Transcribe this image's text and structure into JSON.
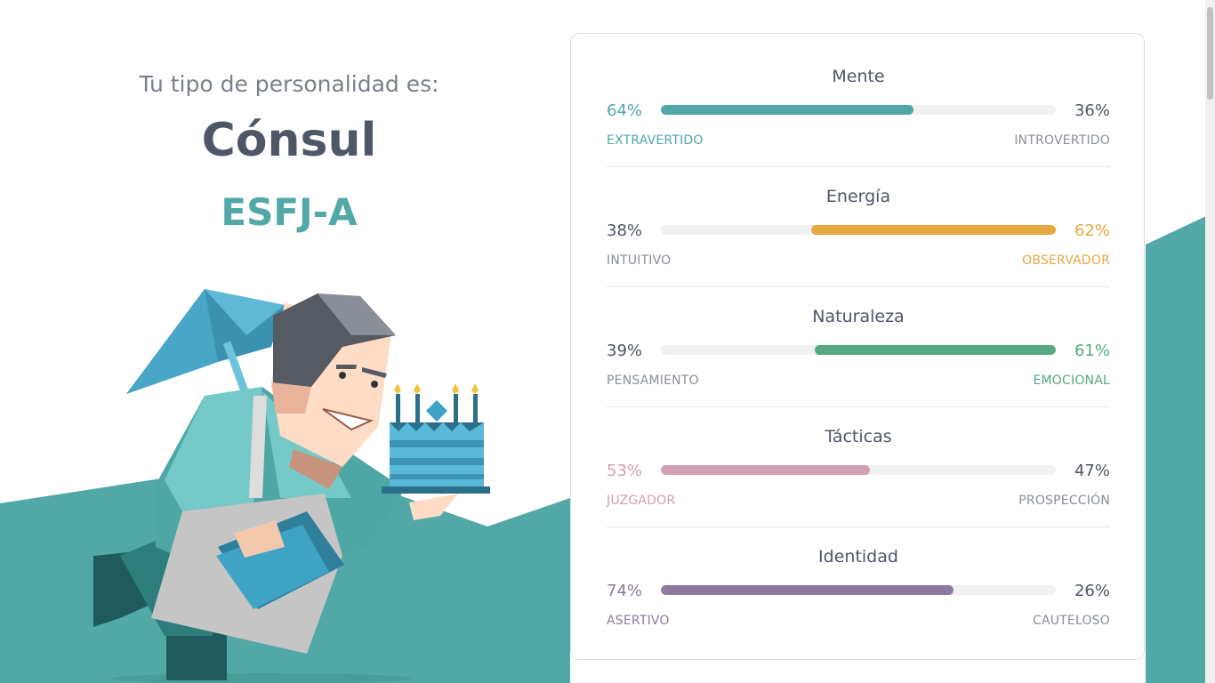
{
  "header": {
    "intro": "Tu tipo de personalidad es:",
    "type_name": "Cónsul",
    "type_code": "ESFJ-A"
  },
  "colors": {
    "teal": "#51a8a6",
    "orange": "#e5a941",
    "green": "#56a882",
    "pink": "#d29fb4",
    "purple": "#8c7aa0",
    "text": "#4f5665",
    "muted": "#8a8f97"
  },
  "traits": [
    {
      "title": "Mente",
      "left_pct": "64%",
      "right_pct": "36%",
      "left_label": "EXTRAVERTIDO",
      "right_label": "INTROVERTIDO",
      "fill_side": "left",
      "fill_fraction": 0.64,
      "color": "#51a8a6"
    },
    {
      "title": "Energía",
      "left_pct": "38%",
      "right_pct": "62%",
      "left_label": "INTUITIVO",
      "right_label": "OBSERVADOR",
      "fill_side": "right",
      "fill_fraction": 0.62,
      "color": "#e5a941"
    },
    {
      "title": "Naturaleza",
      "left_pct": "39%",
      "right_pct": "61%",
      "left_label": "PENSAMIENTO",
      "right_label": "EMOCIONAL",
      "fill_side": "right",
      "fill_fraction": 0.61,
      "color": "#56a882"
    },
    {
      "title": "Tácticas",
      "left_pct": "53%",
      "right_pct": "47%",
      "left_label": "JUZGADOR",
      "right_label": "PROSPECCIÓN",
      "fill_side": "left",
      "fill_fraction": 0.53,
      "color": "#d29fb4"
    },
    {
      "title": "Identidad",
      "left_pct": "74%",
      "right_pct": "26%",
      "left_label": "ASERTIVO",
      "right_label": "CAUTELOSO",
      "fill_side": "left",
      "fill_fraction": 0.74,
      "color": "#8c7aa0"
    }
  ]
}
